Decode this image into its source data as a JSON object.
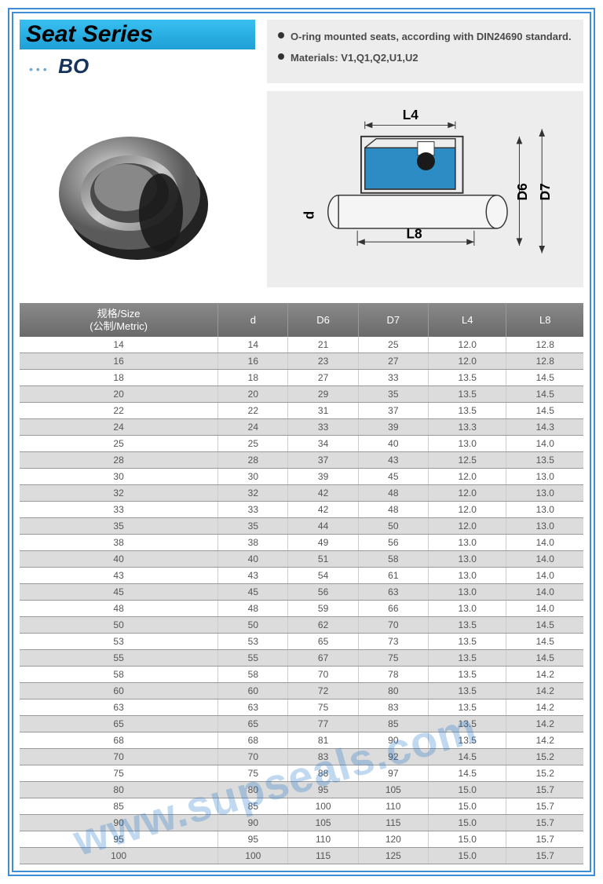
{
  "header": {
    "title": "Seat Series",
    "subtitle_dots": "•••",
    "subtitle_code": "BO"
  },
  "specs": {
    "line1": "O-ring mounted seats, according with DIN24690 standard.",
    "line2": "Materials: V1,Q1,Q2,U1,U2"
  },
  "diagram": {
    "labels": {
      "L4": "L4",
      "L8": "L8",
      "d": "d",
      "D6": "D6",
      "D7": "D7"
    },
    "seal_color": "#2d8cc4",
    "shaft_fill": "#f5f5f5"
  },
  "watermark": "www.supseals.com",
  "table": {
    "headers": {
      "size": "规格/Size\n(公制/Metric)",
      "d": "d",
      "D6": "D6",
      "D7": "D7",
      "L4": "L4",
      "L8": "L8"
    },
    "rows": [
      {
        "s": "14",
        "d": "14",
        "d6": "21",
        "d7": "25",
        "l4": "12.0",
        "l8": "12.8"
      },
      {
        "s": "16",
        "d": "16",
        "d6": "23",
        "d7": "27",
        "l4": "12.0",
        "l8": "12.8"
      },
      {
        "s": "18",
        "d": "18",
        "d6": "27",
        "d7": "33",
        "l4": "13.5",
        "l8": "14.5"
      },
      {
        "s": "20",
        "d": "20",
        "d6": "29",
        "d7": "35",
        "l4": "13.5",
        "l8": "14.5"
      },
      {
        "s": "22",
        "d": "22",
        "d6": "31",
        "d7": "37",
        "l4": "13.5",
        "l8": "14.5"
      },
      {
        "s": "24",
        "d": "24",
        "d6": "33",
        "d7": "39",
        "l4": "13.3",
        "l8": "14.3"
      },
      {
        "s": "25",
        "d": "25",
        "d6": "34",
        "d7": "40",
        "l4": "13.0",
        "l8": "14.0"
      },
      {
        "s": "28",
        "d": "28",
        "d6": "37",
        "d7": "43",
        "l4": "12.5",
        "l8": "13.5"
      },
      {
        "s": "30",
        "d": "30",
        "d6": "39",
        "d7": "45",
        "l4": "12.0",
        "l8": "13.0"
      },
      {
        "s": "32",
        "d": "32",
        "d6": "42",
        "d7": "48",
        "l4": "12.0",
        "l8": "13.0"
      },
      {
        "s": "33",
        "d": "33",
        "d6": "42",
        "d7": "48",
        "l4": "12.0",
        "l8": "13.0"
      },
      {
        "s": "35",
        "d": "35",
        "d6": "44",
        "d7": "50",
        "l4": "12.0",
        "l8": "13.0"
      },
      {
        "s": "38",
        "d": "38",
        "d6": "49",
        "d7": "56",
        "l4": "13.0",
        "l8": "14.0"
      },
      {
        "s": "40",
        "d": "40",
        "d6": "51",
        "d7": "58",
        "l4": "13.0",
        "l8": "14.0"
      },
      {
        "s": "43",
        "d": "43",
        "d6": "54",
        "d7": "61",
        "l4": "13.0",
        "l8": "14.0"
      },
      {
        "s": "45",
        "d": "45",
        "d6": "56",
        "d7": "63",
        "l4": "13.0",
        "l8": "14.0"
      },
      {
        "s": "48",
        "d": "48",
        "d6": "59",
        "d7": "66",
        "l4": "13.0",
        "l8": "14.0"
      },
      {
        "s": "50",
        "d": "50",
        "d6": "62",
        "d7": "70",
        "l4": "13.5",
        "l8": "14.5"
      },
      {
        "s": "53",
        "d": "53",
        "d6": "65",
        "d7": "73",
        "l4": "13.5",
        "l8": "14.5"
      },
      {
        "s": "55",
        "d": "55",
        "d6": "67",
        "d7": "75",
        "l4": "13.5",
        "l8": "14.5"
      },
      {
        "s": "58",
        "d": "58",
        "d6": "70",
        "d7": "78",
        "l4": "13.5",
        "l8": "14.2"
      },
      {
        "s": "60",
        "d": "60",
        "d6": "72",
        "d7": "80",
        "l4": "13.5",
        "l8": "14.2"
      },
      {
        "s": "63",
        "d": "63",
        "d6": "75",
        "d7": "83",
        "l4": "13.5",
        "l8": "14.2"
      },
      {
        "s": "65",
        "d": "65",
        "d6": "77",
        "d7": "85",
        "l4": "13.5",
        "l8": "14.2"
      },
      {
        "s": "68",
        "d": "68",
        "d6": "81",
        "d7": "90",
        "l4": "13.5",
        "l8": "14.2"
      },
      {
        "s": "70",
        "d": "70",
        "d6": "83",
        "d7": "92",
        "l4": "14.5",
        "l8": "15.2"
      },
      {
        "s": "75",
        "d": "75",
        "d6": "88",
        "d7": "97",
        "l4": "14.5",
        "l8": "15.2"
      },
      {
        "s": "80",
        "d": "80",
        "d6": "95",
        "d7": "105",
        "l4": "15.0",
        "l8": "15.7"
      },
      {
        "s": "85",
        "d": "85",
        "d6": "100",
        "d7": "110",
        "l4": "15.0",
        "l8": "15.7"
      },
      {
        "s": "90",
        "d": "90",
        "d6": "105",
        "d7": "115",
        "l4": "15.0",
        "l8": "15.7"
      },
      {
        "s": "95",
        "d": "95",
        "d6": "110",
        "d7": "120",
        "l4": "15.0",
        "l8": "15.7"
      },
      {
        "s": "100",
        "d": "100",
        "d6": "115",
        "d7": "125",
        "l4": "15.0",
        "l8": "15.7"
      }
    ]
  }
}
